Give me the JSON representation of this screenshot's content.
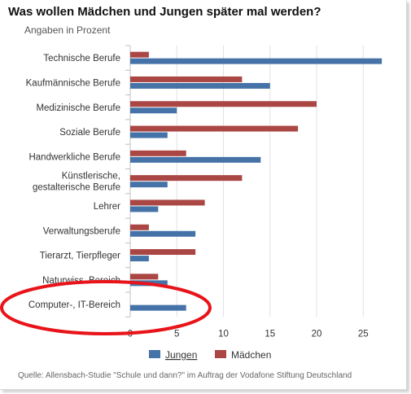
{
  "title": "Was wollen Mädchen und Jungen später mal werden?",
  "subtitle": "Angaben in Prozent",
  "source": "Quelle: Allensbach-Studie \"Schule und dann?\" im Auftrag der Vodafone Stiftung Deutschland",
  "colors": {
    "jungen": "#4572a7",
    "maedchen": "#aa4643",
    "annotation": "#e8141a",
    "grid": "#e2e2e2"
  },
  "chart_data": {
    "type": "bar",
    "orientation": "horizontal",
    "categories": [
      "Technische Berufe",
      "Kaufmännische Berufe",
      "Medizinische Berufe",
      "Soziale Berufe",
      "Handwerkliche Berufe",
      "Künstlerische, gestalterische Berufe",
      "Lehrer",
      "Verwaltungsberufe",
      "Tierarzt, Tierpfleger",
      "Naturwiss. Bereich",
      "Computer-, IT-Bereich"
    ],
    "series": [
      {
        "name": "Mädchen",
        "color": "#aa4643",
        "values": [
          2,
          12,
          20,
          18,
          6,
          12,
          8,
          2,
          7,
          3,
          0
        ]
      },
      {
        "name": "Jungen",
        "color": "#4572a7",
        "values": [
          27,
          15,
          5,
          4,
          14,
          4,
          3,
          7,
          2,
          4,
          6
        ]
      }
    ],
    "xlim": [
      0,
      28
    ],
    "xticks": [
      0,
      5,
      10,
      15,
      20,
      25
    ],
    "grid": true,
    "legend": "bottom-center",
    "legend_order": [
      "Jungen",
      "Mädchen"
    ]
  }
}
